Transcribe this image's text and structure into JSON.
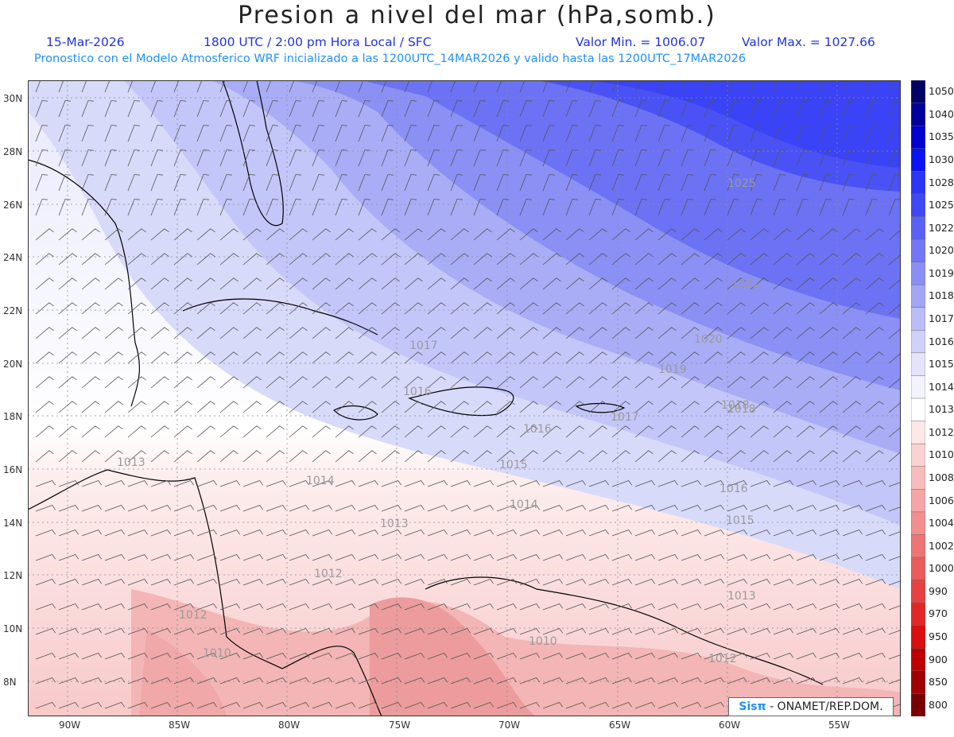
{
  "header": {
    "title": "Presion a nivel del mar (hPa,somb.)",
    "date": "15-Mar-2026",
    "time": "1800 UTC / 2:00 pm Hora Local / SFC",
    "vmin": "Valor Min. = 1006.07",
    "vmax": "Valor Max. = 1027.66",
    "forecast": "Pronostico con el Modelo Atmosferico WRF inicializado a las 1200UTC_14MAR2026 y valido hasta las  1200UTC_17MAR2026"
  },
  "axes": {
    "lat_labels": [
      "30N",
      "28N",
      "26N",
      "24N",
      "22N",
      "20N",
      "18N",
      "16N",
      "14N",
      "12N",
      "10N",
      "8N"
    ],
    "lon_labels": [
      "90W",
      "85W",
      "80W",
      "75W",
      "70W",
      "65W",
      "60W",
      "55W"
    ]
  },
  "colorbar": {
    "levels": [
      "1050",
      "1040",
      "1035",
      "1030",
      "1028",
      "1025",
      "1022",
      "1020",
      "1019",
      "1018",
      "1017",
      "1016",
      "1015",
      "1014",
      "1013",
      "1012",
      "1010",
      "1008",
      "1006",
      "1004",
      "1002",
      "1000",
      "990",
      "970",
      "950",
      "900",
      "850",
      "800"
    ],
    "colors": [
      "#000066",
      "#00009c",
      "#0000d0",
      "#0a14f0",
      "#2a35f5",
      "#3f48f5",
      "#5a62f5",
      "#7177f5",
      "#8a8ff6",
      "#a2a6f7",
      "#babdf8",
      "#cfd1fa",
      "#e3e4fc",
      "#f3f3fe",
      "#ffffff",
      "#fde7e7",
      "#fbd2d2",
      "#f8bcbc",
      "#f5a5a5",
      "#f28e8e",
      "#ee7575",
      "#ea5c5c",
      "#e64242",
      "#e02828",
      "#d81010",
      "#c00000",
      "#a00000",
      "#780000"
    ]
  },
  "contour_labels": [
    {
      "text": "1025"
    },
    {
      "text": "1022"
    },
    {
      "text": "1020"
    },
    {
      "text": "1019"
    },
    {
      "text": "1018"
    },
    {
      "text": "1017"
    },
    {
      "text": "1016"
    },
    {
      "text": "1016"
    },
    {
      "text": "1016"
    },
    {
      "text": "1015"
    },
    {
      "text": "1015"
    },
    {
      "text": "1014"
    },
    {
      "text": "1014"
    },
    {
      "text": "1013"
    },
    {
      "text": "1013"
    },
    {
      "text": "1013"
    },
    {
      "text": "1012"
    },
    {
      "text": "1012"
    },
    {
      "text": "1012"
    },
    {
      "text": "1010"
    },
    {
      "text": "1010"
    },
    {
      "text": "1017"
    },
    {
      "text": "1018"
    }
  ],
  "credit": {
    "logo": "Sisπ",
    "text": "- ONAMET/REP.DOM."
  }
}
